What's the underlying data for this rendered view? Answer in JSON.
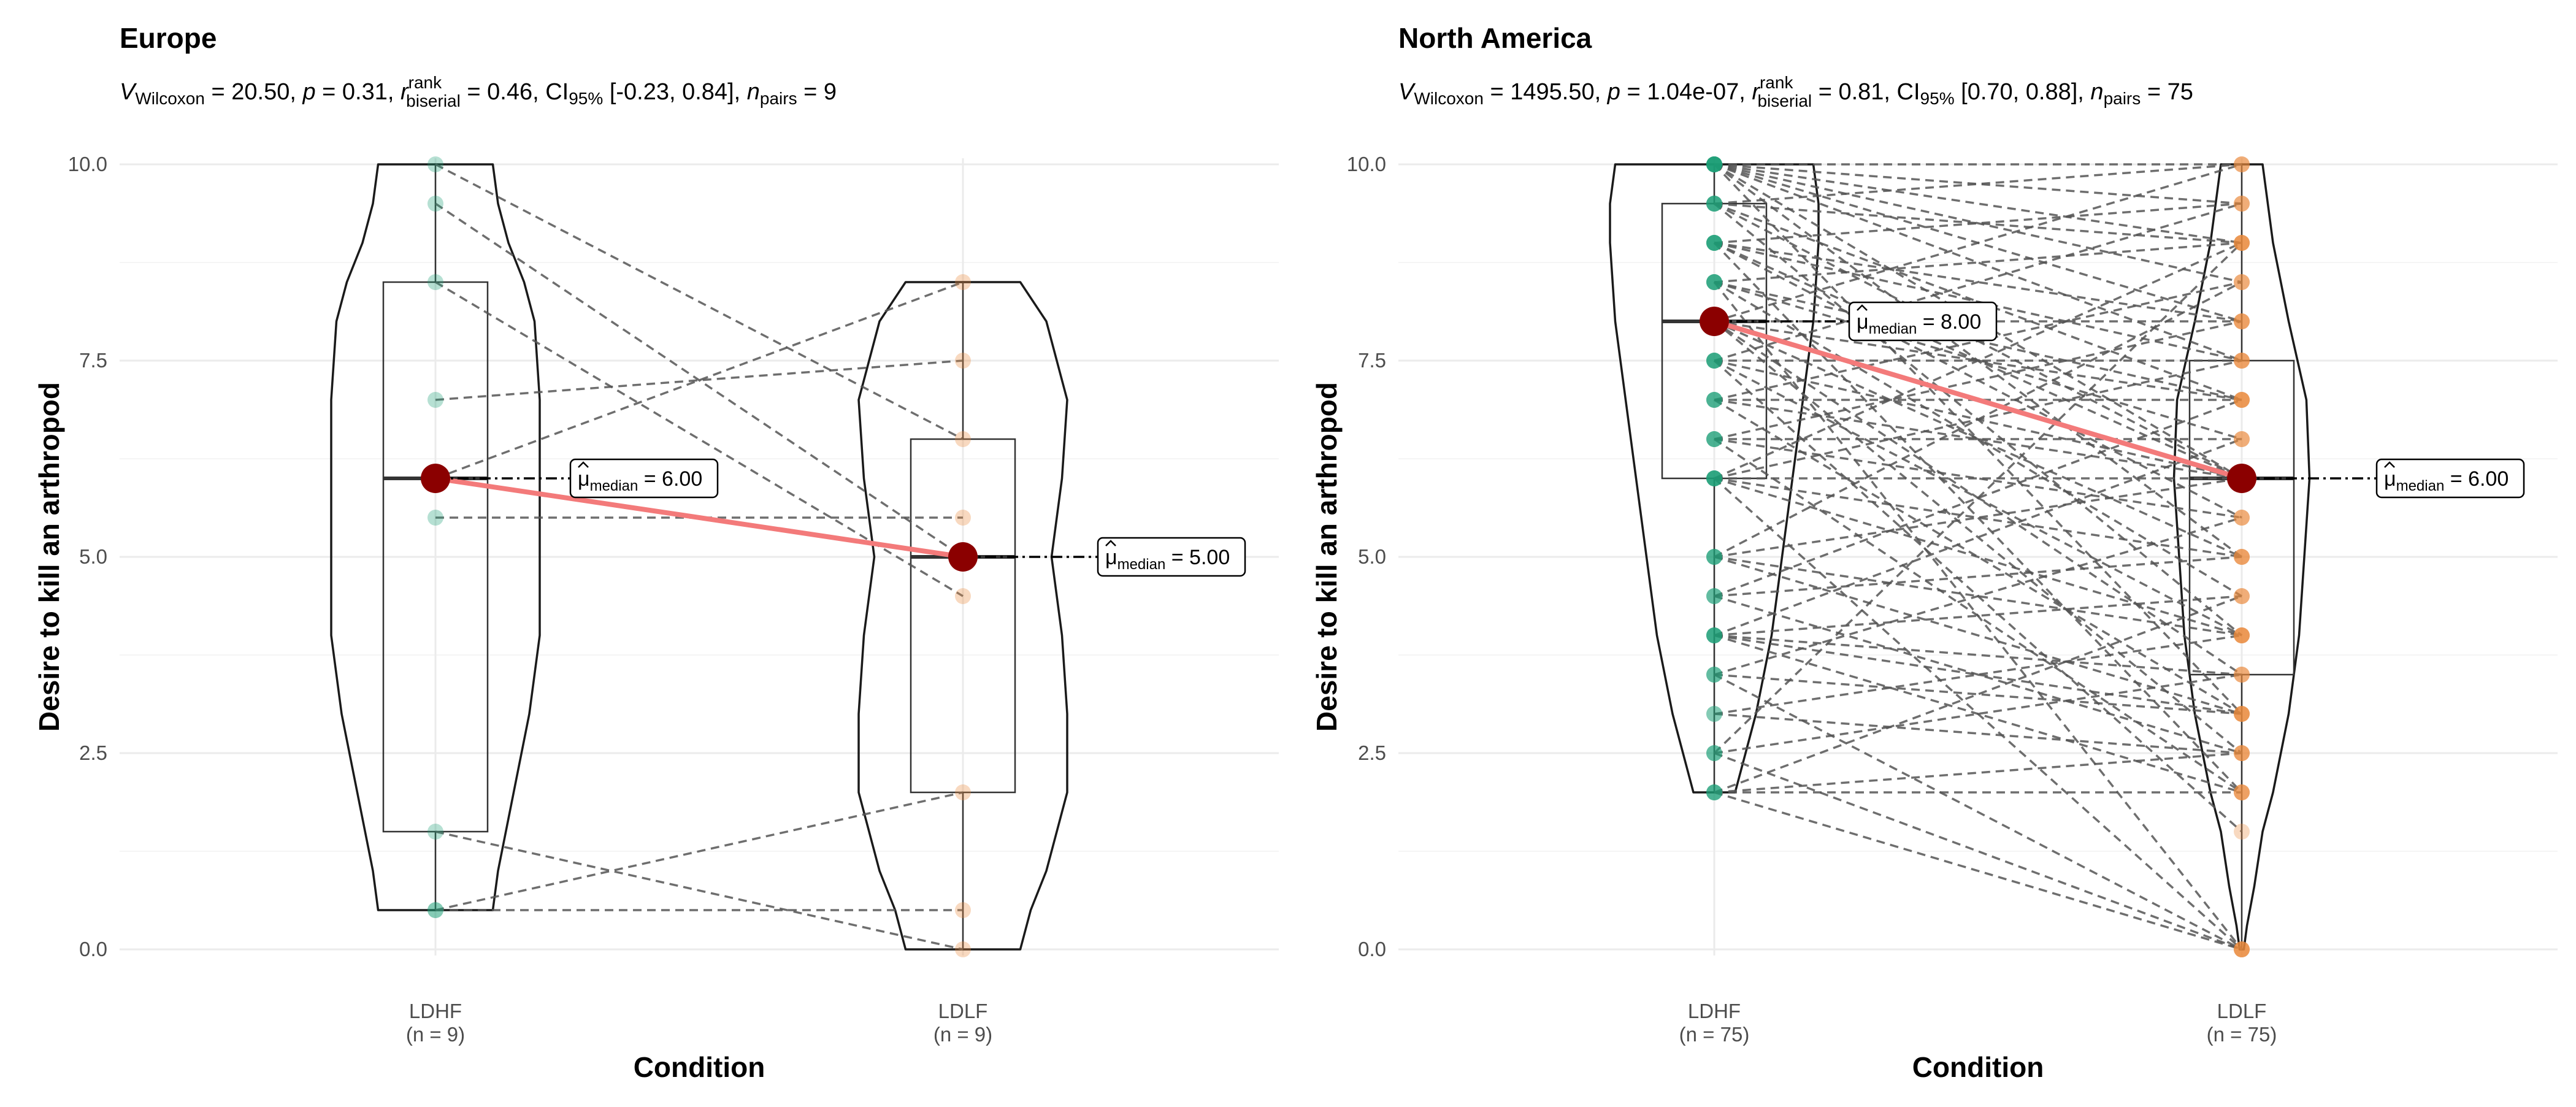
{
  "chart_data": [
    {
      "type": "violin-box-paired",
      "title": "Europe",
      "subtitle": {
        "stat": "V",
        "stat_sub": "Wilcoxon",
        "stat_value": "20.50",
        "p_label": "p",
        "p_value": "0.31",
        "effect_label": "r",
        "effect_sup": "rank",
        "effect_sub": "biserial",
        "effect_value": "0.46",
        "ci_label": "CI",
        "ci_sub": "95%",
        "ci_value": "[-0.23, 0.84]",
        "n_label": "n",
        "n_sub": "pairs",
        "n_value": "9"
      },
      "xlabel": "Condition",
      "ylabel": "Desire to kill an arthropod",
      "ylim": [
        0,
        10
      ],
      "yticks": [
        "0.0",
        "2.5",
        "5.0",
        "7.5",
        "10.0"
      ],
      "categories": [
        "LDHF",
        "LDLF"
      ],
      "category_n": [
        "(n = 9)",
        "(n = 9)"
      ],
      "colors": [
        "#1b9e77",
        "#e8883a"
      ],
      "boxes": [
        {
          "q1": 1.5,
          "median": 6.0,
          "q3": 8.5,
          "min": 0.5,
          "max": 10.0
        },
        {
          "q1": 2.0,
          "median": 5.0,
          "q3": 6.5,
          "min": 0.0,
          "max": 8.5
        }
      ],
      "violin_widths": [
        [
          [
            0.5,
            0.55
          ],
          [
            1.0,
            0.6
          ],
          [
            2.0,
            0.75
          ],
          [
            3.0,
            0.9
          ],
          [
            4.0,
            1.0
          ],
          [
            5.0,
            1.0
          ],
          [
            6.0,
            1.0
          ],
          [
            7.0,
            1.0
          ],
          [
            8.0,
            0.95
          ],
          [
            8.5,
            0.85
          ],
          [
            9.0,
            0.7
          ],
          [
            9.5,
            0.6
          ],
          [
            10.0,
            0.55
          ]
        ],
        [
          [
            0.0,
            0.55
          ],
          [
            0.5,
            0.65
          ],
          [
            1.0,
            0.8
          ],
          [
            2.0,
            1.0
          ],
          [
            3.0,
            1.0
          ],
          [
            4.0,
            0.95
          ],
          [
            5.0,
            0.85
          ],
          [
            6.0,
            0.95
          ],
          [
            7.0,
            1.0
          ],
          [
            8.0,
            0.8
          ],
          [
            8.5,
            0.55
          ]
        ]
      ],
      "pairs": [
        [
          10.0,
          6.5
        ],
        [
          9.5,
          5.0
        ],
        [
          8.5,
          4.5
        ],
        [
          7.0,
          7.5
        ],
        [
          6.0,
          8.5
        ],
        [
          5.5,
          5.5
        ],
        [
          1.5,
          0.0
        ],
        [
          0.5,
          2.0
        ],
        [
          0.5,
          0.5
        ]
      ],
      "medians": [
        6.0,
        5.0
      ],
      "median_labels": [
        "6.00",
        "5.00"
      ],
      "median_label_text": "median"
    },
    {
      "type": "violin-box-paired",
      "title": "North America",
      "subtitle": {
        "stat": "V",
        "stat_sub": "Wilcoxon",
        "stat_value": "1495.50",
        "p_label": "p",
        "p_value": "1.04e-07",
        "effect_label": "r",
        "effect_sup": "rank",
        "effect_sub": "biserial",
        "effect_value": "0.81",
        "ci_label": "CI",
        "ci_sub": "95%",
        "ci_value": "[0.70, 0.88]",
        "n_label": "n",
        "n_sub": "pairs",
        "n_value": "75"
      },
      "xlabel": "Condition",
      "ylabel": "Desire to kill an arthropod",
      "ylim": [
        0,
        10
      ],
      "yticks": [
        "0.0",
        "2.5",
        "5.0",
        "7.5",
        "10.0"
      ],
      "categories": [
        "LDHF",
        "LDLF"
      ],
      "category_n": [
        "(n = 75)",
        "(n = 75)"
      ],
      "colors": [
        "#1b9e77",
        "#e8883a"
      ],
      "boxes": [
        {
          "q1": 6.0,
          "median": 8.0,
          "q3": 9.5,
          "min": 2.0,
          "max": 10.0
        },
        {
          "q1": 3.5,
          "median": 6.0,
          "q3": 7.5,
          "min": 0.0,
          "max": 10.0
        }
      ],
      "violin_widths": [
        [
          [
            2.0,
            0.2
          ],
          [
            2.5,
            0.3
          ],
          [
            3.0,
            0.4
          ],
          [
            4.0,
            0.55
          ],
          [
            5.0,
            0.65
          ],
          [
            6.0,
            0.75
          ],
          [
            7.0,
            0.85
          ],
          [
            8.0,
            0.95
          ],
          [
            9.0,
            1.0
          ],
          [
            9.5,
            1.0
          ],
          [
            10.0,
            0.95
          ]
        ],
        [
          [
            0.0,
            0.02
          ],
          [
            0.3,
            0.05
          ],
          [
            0.8,
            0.12
          ],
          [
            1.5,
            0.2
          ],
          [
            2.0,
            0.3
          ],
          [
            3.0,
            0.45
          ],
          [
            4.0,
            0.55
          ],
          [
            5.0,
            0.6
          ],
          [
            6.0,
            0.65
          ],
          [
            7.0,
            0.62
          ],
          [
            8.0,
            0.45
          ],
          [
            9.0,
            0.3
          ],
          [
            10.0,
            0.2
          ]
        ]
      ],
      "pairs": [
        [
          10.0,
          10.0
        ],
        [
          10.0,
          9.5
        ],
        [
          10.0,
          9.0
        ],
        [
          10.0,
          8.5
        ],
        [
          10.0,
          8.0
        ],
        [
          10.0,
          7.5
        ],
        [
          10.0,
          6.0
        ],
        [
          10.0,
          5.0
        ],
        [
          10.0,
          3.0
        ],
        [
          9.5,
          10.0
        ],
        [
          9.5,
          9.0
        ],
        [
          9.5,
          7.0
        ],
        [
          9.5,
          6.0
        ],
        [
          9.5,
          4.0
        ],
        [
          9.0,
          9.5
        ],
        [
          9.0,
          8.0
        ],
        [
          9.0,
          7.5
        ],
        [
          9.0,
          6.0
        ],
        [
          9.0,
          5.5
        ],
        [
          9.0,
          2.0
        ],
        [
          8.5,
          9.0
        ],
        [
          8.5,
          7.0
        ],
        [
          8.5,
          6.5
        ],
        [
          8.5,
          4.5
        ],
        [
          8.5,
          0.0
        ],
        [
          8.0,
          10.0
        ],
        [
          8.0,
          8.0
        ],
        [
          8.0,
          7.0
        ],
        [
          8.0,
          6.0
        ],
        [
          8.0,
          5.0
        ],
        [
          8.0,
          3.5
        ],
        [
          8.0,
          2.5
        ],
        [
          7.5,
          9.5
        ],
        [
          7.5,
          7.5
        ],
        [
          7.5,
          6.0
        ],
        [
          7.5,
          4.0
        ],
        [
          7.5,
          1.5
        ],
        [
          7.0,
          8.5
        ],
        [
          7.0,
          7.0
        ],
        [
          7.0,
          6.0
        ],
        [
          7.0,
          3.0
        ],
        [
          6.5,
          8.0
        ],
        [
          6.5,
          6.5
        ],
        [
          6.5,
          5.5
        ],
        [
          6.5,
          2.0
        ],
        [
          6.0,
          9.0
        ],
        [
          6.0,
          7.5
        ],
        [
          6.0,
          6.0
        ],
        [
          6.0,
          5.0
        ],
        [
          6.0,
          4.0
        ],
        [
          6.0,
          0.0
        ],
        [
          5.0,
          8.5
        ],
        [
          5.0,
          6.0
        ],
        [
          5.0,
          3.0
        ],
        [
          4.5,
          7.0
        ],
        [
          4.5,
          5.0
        ],
        [
          4.5,
          2.5
        ],
        [
          4.0,
          6.5
        ],
        [
          4.0,
          4.5
        ],
        [
          4.0,
          3.5
        ],
        [
          4.0,
          2.0
        ],
        [
          3.5,
          5.5
        ],
        [
          3.5,
          3.0
        ],
        [
          3.5,
          0.0
        ],
        [
          3.0,
          4.0
        ],
        [
          3.0,
          2.5
        ],
        [
          2.5,
          9.0
        ],
        [
          2.5,
          3.5
        ],
        [
          2.5,
          0.0
        ],
        [
          2.0,
          2.0
        ],
        [
          2.0,
          4.5
        ],
        [
          2.0,
          2.5
        ],
        [
          2.0,
          0.0
        ],
        [
          5.0,
          4.0
        ],
        [
          4.0,
          3.0
        ]
      ],
      "medians": [
        8.0,
        6.0
      ],
      "median_labels": [
        "8.00",
        "6.00"
      ],
      "median_label_text": "median"
    }
  ]
}
